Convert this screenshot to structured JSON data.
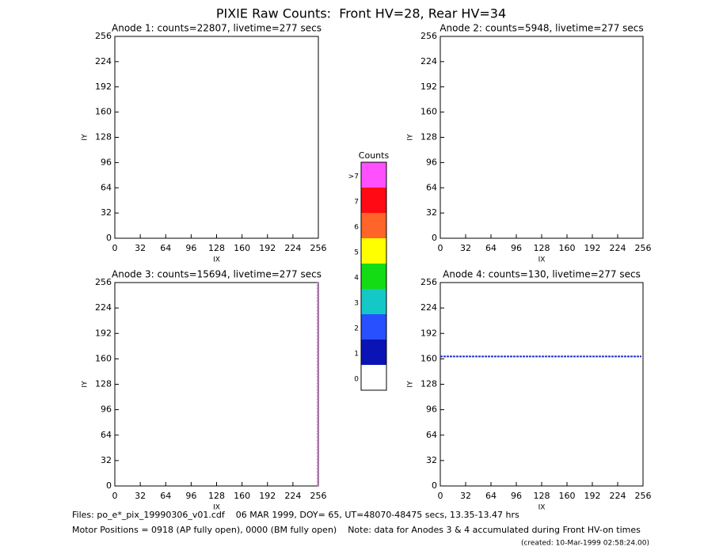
{
  "title": "PIXIE Raw Counts:  Front HV=28, Rear HV=34",
  "chart_data": [
    {
      "type": "heatmap",
      "title": "Anode 1: counts=22807, livetime=277 secs",
      "xlabel": "IX",
      "ylabel": "IY",
      "xlim": [
        0,
        256
      ],
      "ylim": [
        0,
        256
      ],
      "xticks": [
        0,
        32,
        64,
        96,
        128,
        160,
        192,
        224,
        256
      ],
      "yticks": [
        0,
        32,
        64,
        96,
        128,
        160,
        192,
        224,
        256
      ]
    },
    {
      "type": "heatmap",
      "title": "Anode 2: counts=5948, livetime=277 secs",
      "xlabel": "IX",
      "ylabel": "IY",
      "xlim": [
        0,
        256
      ],
      "ylim": [
        0,
        256
      ],
      "xticks": [
        0,
        32,
        64,
        96,
        128,
        160,
        192,
        224,
        256
      ],
      "yticks": [
        0,
        32,
        64,
        96,
        128,
        160,
        192,
        224,
        256
      ]
    },
    {
      "type": "heatmap",
      "title": "Anode 3: counts=15694, livetime=277 secs",
      "xlabel": "IX",
      "ylabel": "IY",
      "xlim": [
        0,
        256
      ],
      "ylim": [
        0,
        256
      ],
      "xticks": [
        0,
        32,
        64,
        96,
        128,
        160,
        192,
        224,
        256
      ],
      "yticks": [
        0,
        32,
        64,
        96,
        128,
        160,
        192,
        224,
        256
      ],
      "series": [
        {
          "color": "#ff66ff",
          "x": [
            255,
            255
          ],
          "y": [
            0,
            256
          ]
        }
      ]
    },
    {
      "type": "heatmap",
      "title": "Anode 4: counts=130, livetime=277 secs",
      "xlabel": "IX",
      "ylabel": "IY",
      "xlim": [
        0,
        256
      ],
      "ylim": [
        0,
        256
      ],
      "xticks": [
        0,
        32,
        64,
        96,
        128,
        160,
        192,
        224,
        256
      ],
      "yticks": [
        0,
        32,
        64,
        96,
        128,
        160,
        192,
        224,
        256
      ],
      "series": [
        {
          "color": "#2233cc",
          "x": [
            0,
            254
          ],
          "y": [
            163,
            163
          ]
        }
      ]
    }
  ],
  "colorbar": {
    "title": "Counts",
    "levels": [
      {
        "label": "0",
        "color": "#ffffff"
      },
      {
        "label": "1",
        "color": "#0a14b4"
      },
      {
        "label": "2",
        "color": "#2850ff"
      },
      {
        "label": "3",
        "color": "#14c8c8"
      },
      {
        "label": "4",
        "color": "#14dc14"
      },
      {
        "label": "5",
        "color": "#ffff00"
      },
      {
        "label": "6",
        "color": "#ff6428"
      },
      {
        "label": "7",
        "color": "#ff0a14"
      },
      {
        "label": ">7",
        "color": "#ff50ff"
      }
    ]
  },
  "footer": {
    "files": "Files: po_e*_pix_19990306_v01.cdf    06 MAR 1999, DOY= 65, UT=48070-48475 secs, 13.35-13.47 hrs",
    "motor": "Motor Positions = 0918 (AP fully open), 0000 (BM fully open)    Note: data for Anodes 3 & 4 accumulated during Front HV-on times",
    "created": "(created: 10-Mar-1999 02:58:24.00)"
  }
}
